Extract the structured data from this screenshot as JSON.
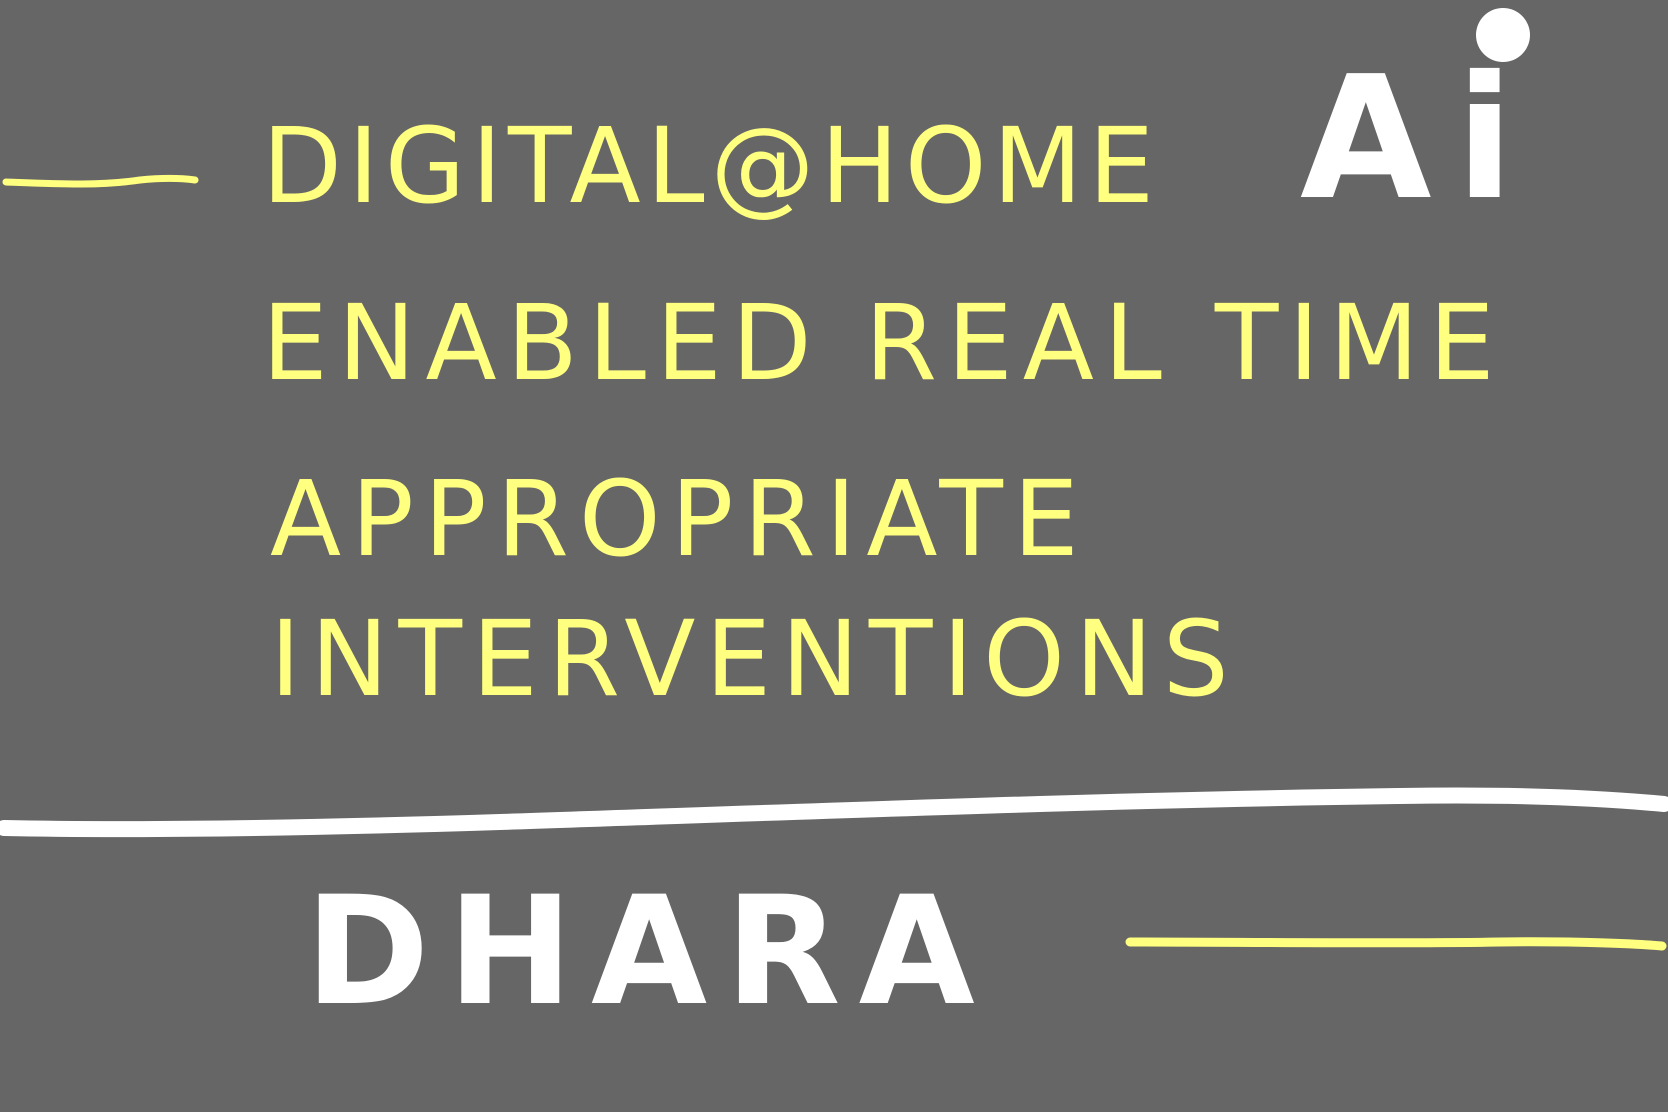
{
  "lines": {
    "line1": "DIGITAL@HOME",
    "line1_suffix": "Ai",
    "line2": "ENABLED REAL TIME",
    "line3": "APPROPRIATE",
    "line4": "INTERVENTIONS"
  },
  "name": "DHARA",
  "colors": {
    "background": "#666666",
    "yellow_ink": "#FFFF80",
    "white_ink": "#FFFFFF"
  }
}
